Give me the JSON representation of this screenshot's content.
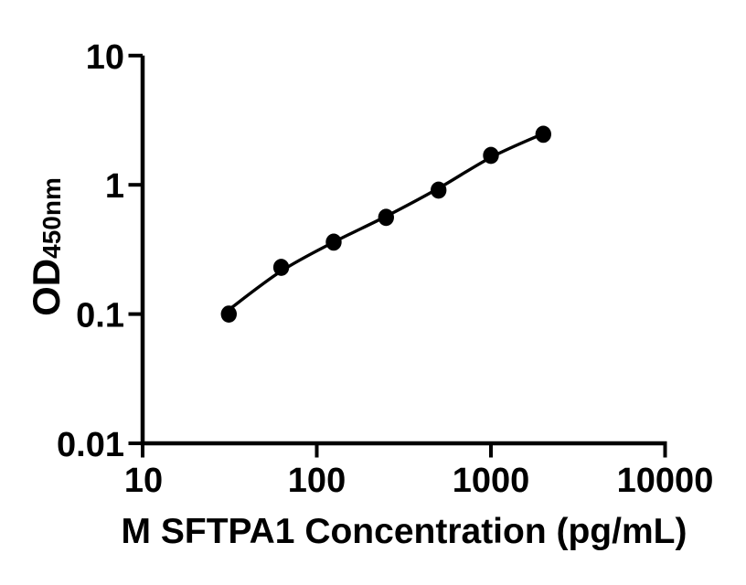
{
  "chart_data": {
    "type": "scatter",
    "title": "",
    "xlabel": "M SFTPA1 Concentration (pg/mL)",
    "ylabel_main": "OD",
    "ylabel_sub": "450nm",
    "x_scale": "log",
    "y_scale": "log",
    "xlim": [
      10,
      10000
    ],
    "ylim": [
      0.01,
      10
    ],
    "grid": false,
    "legend": "none",
    "x_tick_labels": [
      "10",
      "100",
      "1000",
      "10000"
    ],
    "y_tick_labels": [
      "10",
      "1",
      "0.1",
      "0.01"
    ],
    "x": [
      31.25,
      62.5,
      125,
      250,
      500,
      1000,
      2000
    ],
    "od": [
      0.1,
      0.23,
      0.36,
      0.56,
      0.91,
      1.69,
      2.46
    ],
    "fit_line": {
      "x": [
        31.25,
        62.5,
        125,
        250,
        500,
        1000,
        2000
      ],
      "od": [
        0.108,
        0.215,
        0.36,
        0.57,
        0.94,
        1.63,
        2.49
      ]
    },
    "marker_color": "#000000",
    "line_color": "#000000",
    "background_color": "#ffffff"
  }
}
